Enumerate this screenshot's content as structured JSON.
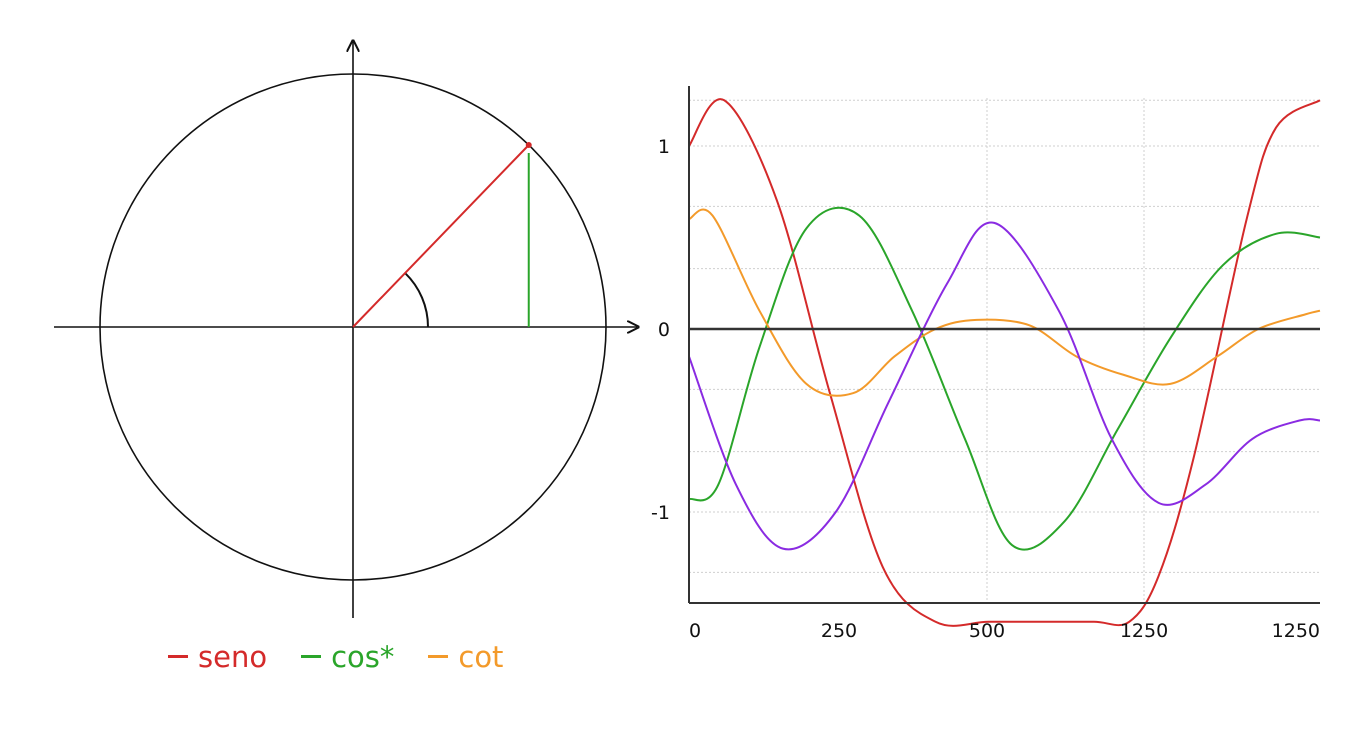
{
  "unit_circle": {
    "angle_deg": 46
  },
  "legend": [
    {
      "label": "seno",
      "color": "#d42a2a"
    },
    {
      "label": "cos*",
      "color": "#2aa52a"
    },
    {
      "label": "cot",
      "color": "#f39a2a"
    }
  ],
  "chart_data": {
    "type": "line",
    "x_ticks": [
      "0",
      "250",
      "500",
      "1250",
      "1250"
    ],
    "y_ticks": [
      "1",
      "0",
      "-1"
    ],
    "ylim": [
      -1.62,
      1.35
    ],
    "xlim": [
      0,
      1075
    ],
    "grid": true,
    "colors": {
      "axis": "#333333",
      "grid": "#cfcfcf"
    },
    "series": [
      {
        "color": "#d42a2a",
        "x": [
          0,
          60,
          150,
          240,
          330,
          420,
          510,
          600,
          690,
          750,
          800,
          860,
          950,
          1000,
          1075
        ],
        "y": [
          1.0,
          1.25,
          0.7,
          -0.35,
          -1.3,
          -1.6,
          -1.6,
          -1.6,
          -1.6,
          -1.6,
          -1.35,
          -0.7,
          0.6,
          1.1,
          1.25
        ]
      },
      {
        "color": "#2aa52a",
        "x": [
          0,
          50,
          120,
          200,
          290,
          380,
          470,
          550,
          640,
          730,
          820,
          910,
          1000,
          1075
        ],
        "y": [
          -0.93,
          -0.85,
          -0.1,
          0.55,
          0.62,
          0.1,
          -0.6,
          -1.18,
          -1.05,
          -0.55,
          -0.05,
          0.35,
          0.52,
          0.5
        ]
      },
      {
        "color": "#f39a2a",
        "x": [
          0,
          40,
          120,
          200,
          280,
          350,
          420,
          490,
          580,
          660,
          740,
          820,
          900,
          970,
          1050,
          1075
        ],
        "y": [
          0.6,
          0.62,
          0.1,
          -0.3,
          -0.35,
          -0.15,
          0.0,
          0.05,
          0.02,
          -0.15,
          -0.25,
          -0.3,
          -0.15,
          0.0,
          0.08,
          0.1
        ]
      },
      {
        "color": "#8a2be2",
        "x": [
          0,
          80,
          160,
          250,
          340,
          440,
          520,
          630,
          720,
          800,
          880,
          960,
          1040,
          1075
        ],
        "y": [
          -0.15,
          -0.85,
          -1.2,
          -1.0,
          -0.4,
          0.25,
          0.58,
          0.1,
          -0.6,
          -0.95,
          -0.85,
          -0.6,
          -0.5,
          -0.5
        ]
      }
    ]
  }
}
